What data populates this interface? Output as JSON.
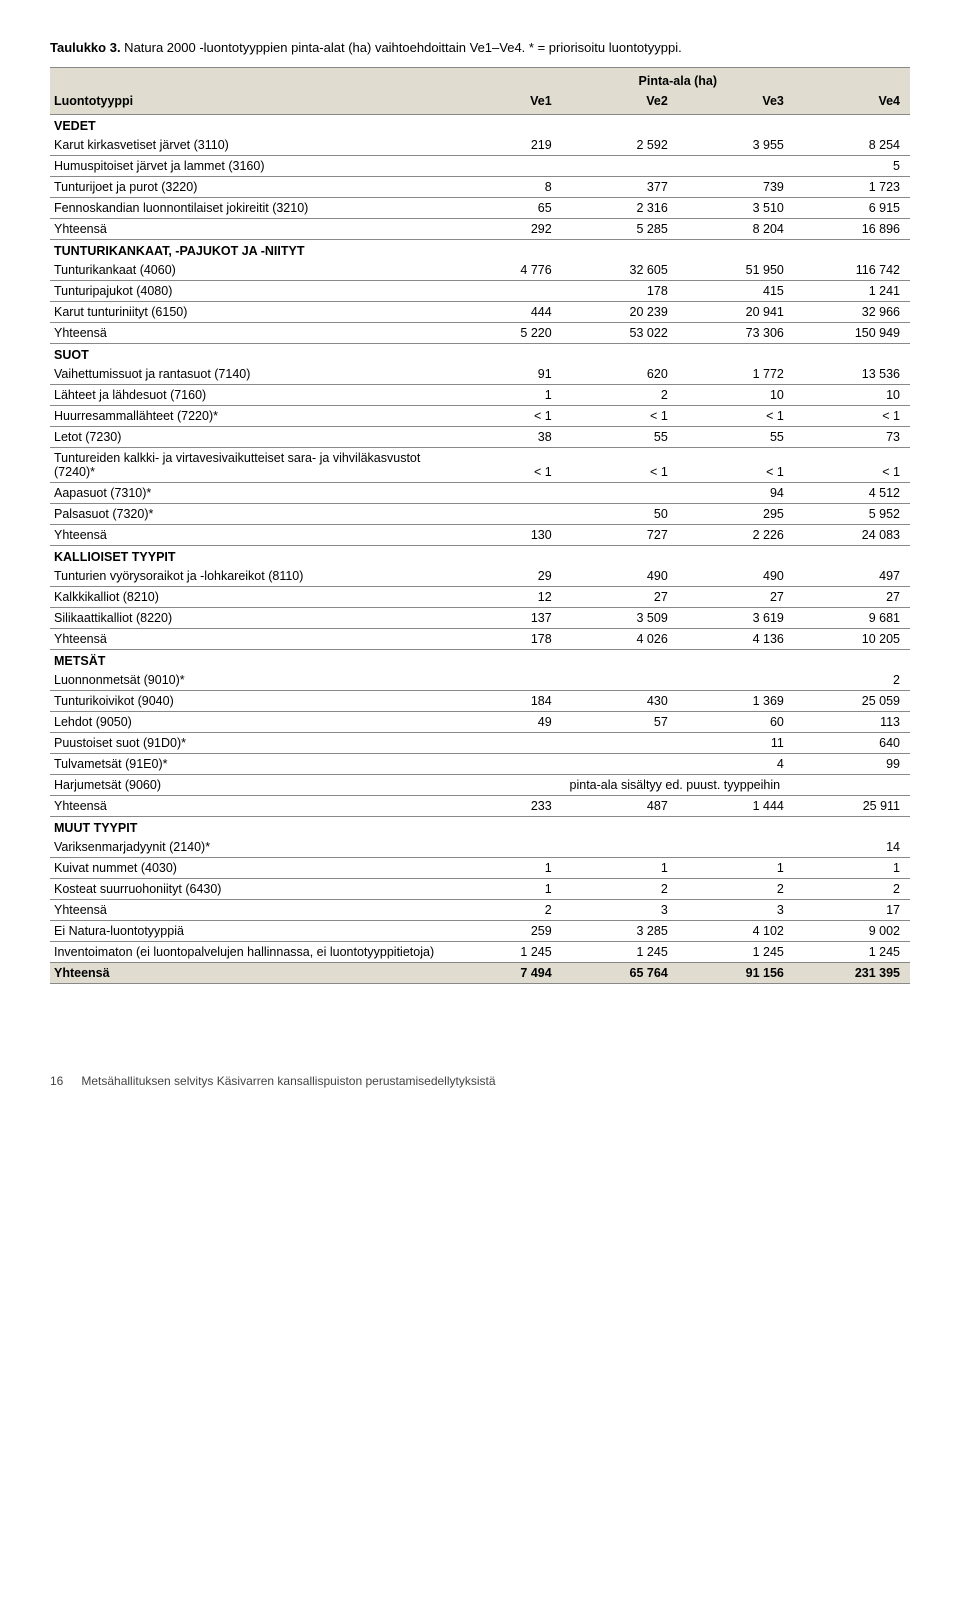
{
  "caption_bold": "Taulukko 3.",
  "caption_rest": " Natura 2000 -luontotyyppien pinta-alat (ha) vaihtoehdoittain Ve1–Ve4. * = priorisoitu luontotyyppi.",
  "super_header": "Pinta-ala (ha)",
  "col_headers": [
    "Luontotyyppi",
    "Ve1",
    "Ve2",
    "Ve3",
    "Ve4"
  ],
  "rows": [
    {
      "type": "section",
      "label": "VEDET"
    },
    {
      "label": "Karut kirkasvetiset järvet (3110)",
      "v": [
        "219",
        "2 592",
        "3 955",
        "8 254"
      ]
    },
    {
      "label": "Humuspitoiset järvet ja lammet (3160)",
      "v": [
        "",
        "",
        "",
        "5"
      ]
    },
    {
      "label": "Tunturijoet ja purot (3220)",
      "v": [
        "8",
        "377",
        "739",
        "1 723"
      ]
    },
    {
      "label": "Fennoskandian luonnontilaiset jokireitit (3210)",
      "v": [
        "65",
        "2 316",
        "3 510",
        "6 915"
      ]
    },
    {
      "label": "Yhteensä",
      "v": [
        "292",
        "5 285",
        "8 204",
        "16 896"
      ]
    },
    {
      "type": "section",
      "label": "TUNTURIKANKAAT, -PAJUKOT JA -NIITYT"
    },
    {
      "label": "Tunturikankaat (4060)",
      "v": [
        "4 776",
        "32 605",
        "51 950",
        "116 742"
      ]
    },
    {
      "label": "Tunturipajukot (4080)",
      "v": [
        "",
        "178",
        "415",
        "1 241"
      ]
    },
    {
      "label": "Karut tunturiniityt (6150)",
      "v": [
        "444",
        "20 239",
        "20 941",
        "32 966"
      ]
    },
    {
      "label": "Yhteensä",
      "v": [
        "5 220",
        "53 022",
        "73 306",
        "150 949"
      ]
    },
    {
      "type": "section",
      "label": "SUOT"
    },
    {
      "label": "Vaihettumissuot ja rantasuot (7140)",
      "v": [
        "91",
        "620",
        "1 772",
        "13 536"
      ]
    },
    {
      "label": "Lähteet ja lähdesuot (7160)",
      "v": [
        "1",
        "2",
        "10",
        "10"
      ]
    },
    {
      "label": "Huurresammallähteet (7220)*",
      "v": [
        "< 1",
        "< 1",
        "< 1",
        "< 1"
      ]
    },
    {
      "label": "Letot (7230)",
      "v": [
        "38",
        "55",
        "55",
        "73"
      ]
    },
    {
      "label": "Tuntureiden kalkki- ja virtavesivaikutteiset sara- ja vihviläkasvustot (7240)*",
      "v": [
        "< 1",
        "< 1",
        "< 1",
        "< 1"
      ]
    },
    {
      "label": "Aapasuot (7310)*",
      "v": [
        "",
        "",
        "94",
        "4 512"
      ]
    },
    {
      "label": "Palsasuot (7320)*",
      "v": [
        "",
        "50",
        "295",
        "5 952"
      ]
    },
    {
      "label": "Yhteensä",
      "v": [
        "130",
        "727",
        "2 226",
        "24 083"
      ]
    },
    {
      "type": "section",
      "label": "KALLIOISET TYYPIT"
    },
    {
      "label": "Tunturien vyörysoraikot ja -lohkareikot (8110)",
      "v": [
        "29",
        "490",
        "490",
        "497"
      ]
    },
    {
      "label": "Kalkkikalliot (8210)",
      "v": [
        "12",
        "27",
        "27",
        "27"
      ]
    },
    {
      "label": "Silikaattikalliot (8220)",
      "v": [
        "137",
        "3 509",
        "3 619",
        "9 681"
      ]
    },
    {
      "label": "Yhteensä",
      "v": [
        "178",
        "4 026",
        "4 136",
        "10 205"
      ]
    },
    {
      "type": "section",
      "label": "METSÄT"
    },
    {
      "label": "Luonnonmetsät (9010)*",
      "v": [
        "",
        "",
        "",
        "2"
      ]
    },
    {
      "label": "Tunturikoivikot (9040)",
      "v": [
        "184",
        "430",
        "1 369",
        "25 059"
      ]
    },
    {
      "label": "Lehdot (9050)",
      "v": [
        "49",
        "57",
        "60",
        "113"
      ]
    },
    {
      "label": "Puustoiset suot (91D0)*",
      "v": [
        "",
        "",
        "11",
        "640"
      ]
    },
    {
      "label": "Tulvametsät (91E0)*",
      "v": [
        "",
        "",
        "4",
        "99"
      ]
    },
    {
      "label": "Harjumetsät (9060)",
      "note": "pinta-ala sisältyy ed. puust. tyyppeihin"
    },
    {
      "label": "Yhteensä",
      "v": [
        "233",
        "487",
        "1 444",
        "25 911"
      ]
    },
    {
      "type": "section",
      "label": "MUUT TYYPIT"
    },
    {
      "label": "Variksenmarjadyynit (2140)*",
      "v": [
        "",
        "",
        "",
        "14"
      ]
    },
    {
      "label": "Kuivat nummet (4030)",
      "v": [
        "1",
        "1",
        "1",
        "1"
      ]
    },
    {
      "label": "Kosteat suurruohoniityt (6430)",
      "v": [
        "1",
        "2",
        "2",
        "2"
      ]
    },
    {
      "label": "Yhteensä",
      "v": [
        "2",
        "3",
        "3",
        "17"
      ]
    },
    {
      "label": "Ei Natura-luontotyyppiä",
      "v": [
        "259",
        "3 285",
        "4 102",
        "9 002"
      ]
    },
    {
      "label": "Inventoimaton (ei luontopalvelujen hallinnassa, ei luontotyyppitietoja)",
      "v": [
        "1 245",
        "1 245",
        "1 245",
        "1 245"
      ]
    },
    {
      "type": "total",
      "label": "Yhteensä",
      "v": [
        "7 494",
        "65 764",
        "91 156",
        "231 395"
      ]
    }
  ],
  "footer_page": "16",
  "footer_text": "Metsähallituksen selvitys Käsivarren kansallispuiston perustamisedellytyksistä"
}
